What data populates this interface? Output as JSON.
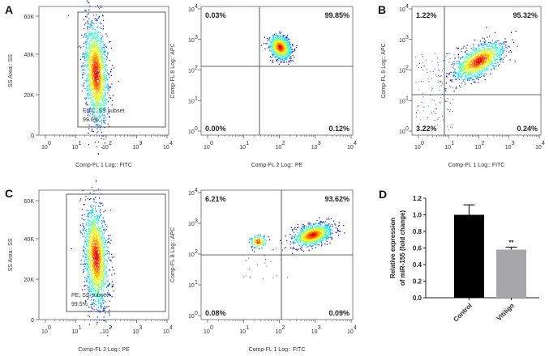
{
  "panels": [
    {
      "label": "A",
      "type": "gate",
      "x_title": "Comp-FL 1 Log:: FITC",
      "y_title": "SS Area:: SS",
      "y_ticks": [
        "0",
        "20K",
        "40K",
        "60K"
      ],
      "gate_name": "FITC, SS subset",
      "gate_pct": "99.6%"
    },
    {
      "label": "",
      "type": "quad",
      "x_title": "Comp-FL 2 Log:: PE",
      "y_title": "Comp-FL 8 Log:: APC",
      "quadrants": {
        "ul": "0.03%",
        "ur": "99.85%",
        "ll": "0.00%",
        "lr": "0.12%"
      }
    },
    {
      "label": "B",
      "type": "quad",
      "x_title": "Comp-FL 1 Log:: FITC",
      "y_title": "Comp-FL 8 Log:: APC",
      "quadrants": {
        "ul": "1.22%",
        "ur": "95.32%",
        "ll": "3.22%",
        "lr": "0.24%"
      }
    },
    {
      "label": "C",
      "type": "gate",
      "x_title": "Comp-FL 2 Log:: PE",
      "y_title": "SS Area:: SS",
      "y_ticks": [
        "0",
        "20K",
        "40K",
        "60K"
      ],
      "gate_name": "PE, SS subset",
      "gate_pct": "99.5%"
    },
    {
      "label": "",
      "type": "quad",
      "x_title": "Comp-FL 1 Log:: FITC",
      "y_title": "Comp-FL 8 Log:: APC",
      "quadrants": {
        "ul": "6.21%",
        "ur": "93.62%",
        "ll": "0.08%",
        "lr": "0.09%"
      }
    }
  ],
  "log_ticks": {
    "base": "10",
    "exp": [
      "0",
      "1",
      "2",
      "3",
      "4"
    ]
  },
  "chart_data": {
    "label": "D",
    "type": "bar",
    "categories": [
      "Control",
      "Vitiligo"
    ],
    "values": [
      1.0,
      0.58
    ],
    "errors": [
      0.12,
      0.03
    ],
    "colors": [
      "#000000",
      "#a6a6a8"
    ],
    "annotations": [
      "",
      "**"
    ],
    "ylabel": "Relative expression of miR-155 (fold change)",
    "ylabel_lines": [
      "Relative expression",
      "of miR-155 (fold change)"
    ],
    "ylim": [
      0,
      1.2
    ],
    "y_ticks": [
      "0.0",
      "0.2",
      "0.4",
      "0.6",
      "0.8",
      "1.0",
      "1.2"
    ]
  }
}
